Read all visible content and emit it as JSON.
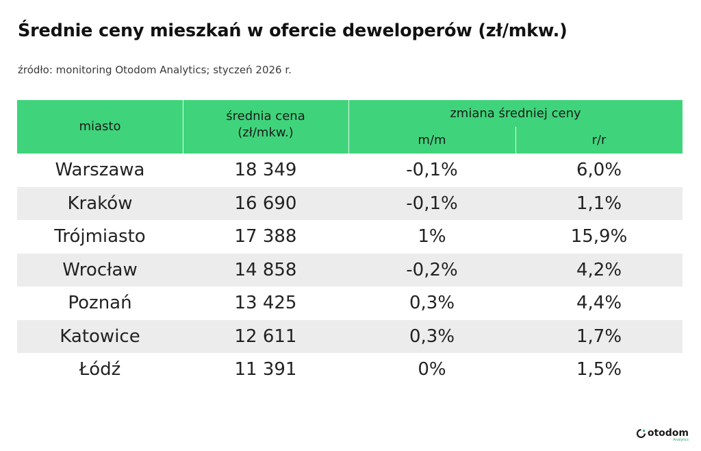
{
  "header": {
    "title": "Średnie ceny mieszkań w ofercie deweloperów (zł/mkw.)",
    "subtitle": "źródło: monitoring Otodom Analytics; styczeń 2026 r."
  },
  "table": {
    "columns": {
      "city": "miasto",
      "price_line1": "średnia cena",
      "price_line2": "(zł/mkw.)",
      "change_group": "zmiana średniej ceny",
      "mm": "m/m",
      "rr": "r/r"
    },
    "rows": [
      {
        "city": "Warszawa",
        "price": "18 349",
        "mm": "-0,1%",
        "rr": "6,0%"
      },
      {
        "city": "Kraków",
        "price": "16 690",
        "mm": "-0,1%",
        "rr": "1,1%"
      },
      {
        "city": "Trójmiasto",
        "price": "17 388",
        "mm": "1%",
        "rr": "15,9%"
      },
      {
        "city": "Wrocław",
        "price": "14 858",
        "mm": "-0,2%",
        "rr": "4,2%"
      },
      {
        "city": "Poznań",
        "price": "13 425",
        "mm": "0,3%",
        "rr": "4,4%"
      },
      {
        "city": "Katowice",
        "price": "12 611",
        "mm": "0,3%",
        "rr": "1,7%"
      },
      {
        "city": "Łódź",
        "price": "11 391",
        "mm": "0%",
        "rr": "1,5%"
      }
    ]
  },
  "logo": {
    "name": "otodom",
    "sub": "Analytics",
    "icon": "otodom-logo-icon",
    "color": "#2aa862"
  },
  "colors": {
    "header_green": "#3fd47b",
    "row_alt": "#ececec"
  }
}
